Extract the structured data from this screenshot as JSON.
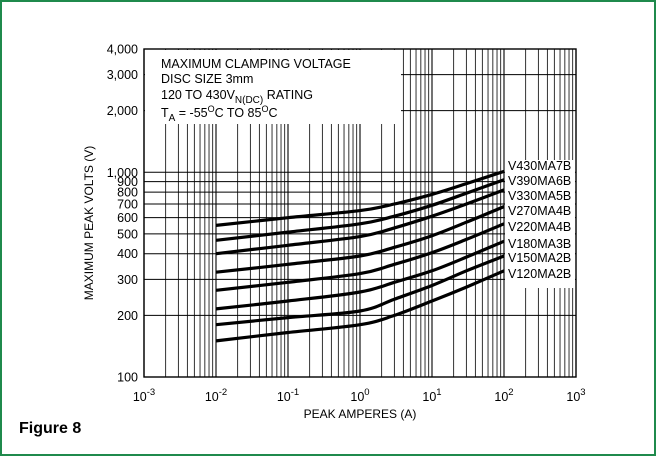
{
  "figure_label": "Figure 8",
  "colors": {
    "border": "#1f8a4c",
    "curve": "#000000",
    "grid": "#000000"
  },
  "chart_data": {
    "type": "line",
    "title": "",
    "xlabel": "PEAK AMPERES (A)",
    "ylabel": "MAXIMUM PEAK VOLTS (V)",
    "x_scale": "log",
    "y_scale": "log",
    "xlim": [
      0.001,
      1000
    ],
    "ylim": [
      100,
      4000
    ],
    "grid": true,
    "x_ticks": [
      {
        "base": "10",
        "exp": "-3"
      },
      {
        "base": "10",
        "exp": "-2"
      },
      {
        "base": "10",
        "exp": "-1"
      },
      {
        "base": "10",
        "exp": "0"
      },
      {
        "base": "10",
        "exp": "1"
      },
      {
        "base": "10",
        "exp": "2"
      },
      {
        "base": "10",
        "exp": "3"
      }
    ],
    "y_ticks": [
      "100",
      "200",
      "300",
      "400",
      "500",
      "600",
      "700",
      "800",
      "900",
      "1,000",
      "2,000",
      "3,000",
      "4,000"
    ],
    "annotation": {
      "line1": "MAXIMUM CLAMPING VOLTAGE",
      "line2": "DISC SIZE 3mm",
      "line3_pre": "120 TO 430V",
      "line3_sub": "N(DC)",
      "line3_post": " RATING",
      "line4_a": "T",
      "line4_a_sub": "A",
      "line4_b": " = -55",
      "line4_b_sup": "O",
      "line4_c": "C TO 85",
      "line4_c_sup": "O",
      "line4_d": "C"
    },
    "series": [
      {
        "name": "V430MA7B",
        "x": [
          0.01,
          0.1,
          1,
          3,
          10,
          30,
          100
        ],
        "y": [
          550,
          600,
          650,
          700,
          780,
          880,
          1010
        ]
      },
      {
        "name": "V390MA6B",
        "x": [
          0.01,
          0.1,
          1,
          3,
          10,
          30,
          100
        ],
        "y": [
          465,
          510,
          560,
          610,
          690,
          790,
          920
        ]
      },
      {
        "name": "V330MA5B",
        "x": [
          0.01,
          0.1,
          1,
          3,
          10,
          30,
          100
        ],
        "y": [
          400,
          440,
          485,
          535,
          610,
          700,
          820
        ]
      },
      {
        "name": "V270MA4B",
        "x": [
          0.01,
          0.1,
          1,
          3,
          10,
          30,
          100
        ],
        "y": [
          325,
          355,
          390,
          430,
          490,
          570,
          680
        ]
      },
      {
        "name": "V220MA4B",
        "x": [
          0.01,
          0.1,
          1,
          3,
          10,
          30,
          100
        ],
        "y": [
          265,
          290,
          320,
          355,
          405,
          470,
          560
        ]
      },
      {
        "name": "V180MA3B",
        "x": [
          0.01,
          0.1,
          1,
          3,
          10,
          30,
          100
        ],
        "y": [
          215,
          235,
          260,
          290,
          330,
          385,
          460
        ]
      },
      {
        "name": "V150MA2B",
        "x": [
          0.01,
          0.1,
          1,
          3,
          10,
          30,
          100
        ],
        "y": [
          180,
          195,
          210,
          240,
          280,
          330,
          390
        ]
      },
      {
        "name": "V120MA2B",
        "x": [
          0.01,
          0.1,
          1,
          3,
          10,
          30,
          100
        ],
        "y": [
          150,
          165,
          180,
          200,
          235,
          275,
          330
        ]
      }
    ]
  }
}
